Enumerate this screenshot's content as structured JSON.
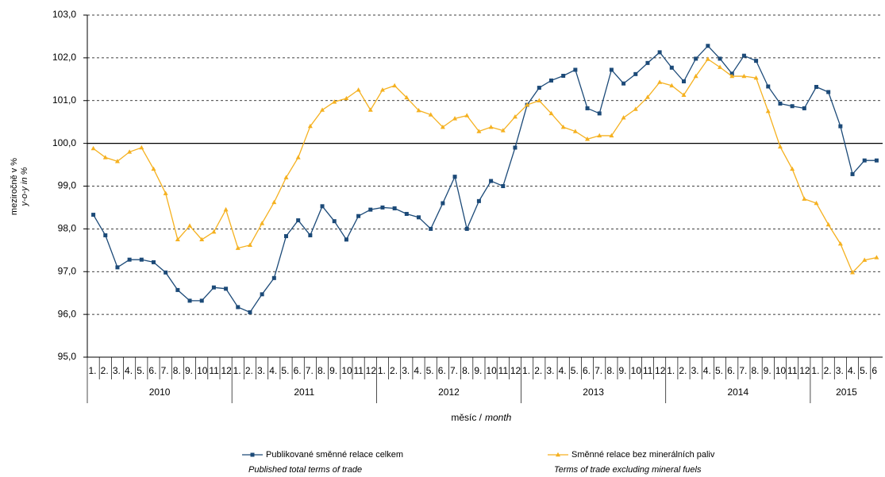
{
  "chart_data": {
    "type": "line",
    "ylabel": "meziročně v %",
    "ylabel_en": "y-o-y in %",
    "xlabel": "měsíc /",
    "xlabel_en": "month",
    "categories": [
      "1.",
      "2.",
      "3.",
      "4.",
      "5.",
      "6.",
      "7.",
      "8.",
      "9.",
      "10",
      "11",
      "12",
      "1.",
      "2.",
      "3.",
      "4.",
      "5.",
      "6.",
      "7.",
      "8.",
      "9.",
      "10",
      "11",
      "12",
      "1.",
      "2.",
      "3.",
      "4.",
      "5.",
      "6.",
      "7.",
      "8.",
      "9.",
      "10",
      "11",
      "12",
      "1.",
      "2.",
      "3.",
      "4.",
      "5.",
      "6.",
      "7.",
      "8.",
      "9.",
      "10",
      "11",
      "12",
      "1.",
      "2.",
      "3.",
      "4.",
      "5.",
      "6.",
      "7.",
      "8.",
      "9.",
      "10",
      "11",
      "12",
      "1.",
      "2.",
      "3.",
      "4.",
      "5.",
      "6"
    ],
    "years": [
      "2010",
      "2011",
      "2012",
      "2013",
      "2014",
      "2015"
    ],
    "ylim": [
      95,
      103
    ],
    "yticks": [
      {
        "value": 95,
        "label": "95,0"
      },
      {
        "value": 96,
        "label": "96,0"
      },
      {
        "value": 97,
        "label": "97,0"
      },
      {
        "value": 98,
        "label": "98,0"
      },
      {
        "value": 99,
        "label": "99,0"
      },
      {
        "value": 100,
        "label": "100,0"
      },
      {
        "value": 101,
        "label": "101,0"
      },
      {
        "value": 102,
        "label": "102,0"
      },
      {
        "value": 103,
        "label": "103,0"
      }
    ],
    "baseline": 100,
    "grid": true,
    "series": [
      {
        "name": "Publikované směnné relace celkem",
        "subtitle": "Published total terms of trade",
        "color": "#1c4a78",
        "marker": "square",
        "values": [
          98.33,
          97.85,
          97.1,
          97.28,
          97.28,
          97.22,
          96.98,
          96.57,
          96.32,
          96.32,
          96.63,
          96.6,
          96.17,
          96.05,
          96.47,
          96.85,
          97.83,
          98.2,
          97.85,
          98.53,
          98.18,
          97.75,
          98.3,
          98.45,
          98.5,
          98.48,
          98.35,
          98.27,
          98.0,
          98.6,
          99.22,
          98.0,
          98.65,
          99.12,
          99.0,
          99.9,
          100.9,
          101.3,
          101.47,
          101.58,
          101.72,
          100.82,
          100.7,
          101.72,
          101.4,
          101.62,
          101.88,
          102.13,
          101.77,
          101.45,
          101.98,
          102.28,
          101.98,
          101.63,
          102.05,
          101.93,
          101.33,
          100.93,
          100.87,
          100.82,
          101.32,
          101.2,
          100.4,
          99.28,
          99.6,
          99.6
        ]
      },
      {
        "name": "Směnné relace bez minerálních paliv",
        "subtitle": "Terms of trade excluding mineral fuels",
        "color": "#f5b120",
        "marker": "triangle",
        "values": [
          99.88,
          99.67,
          99.58,
          99.8,
          99.9,
          99.4,
          98.83,
          97.75,
          98.07,
          97.75,
          97.93,
          98.45,
          97.55,
          97.62,
          98.13,
          98.62,
          99.2,
          99.67,
          100.4,
          100.78,
          100.97,
          101.05,
          101.25,
          100.78,
          101.25,
          101.35,
          101.07,
          100.77,
          100.67,
          100.38,
          100.58,
          100.65,
          100.28,
          100.38,
          100.3,
          100.62,
          100.9,
          101.0,
          100.7,
          100.38,
          100.28,
          100.1,
          100.18,
          100.18,
          100.6,
          100.8,
          101.08,
          101.43,
          101.35,
          101.13,
          101.57,
          101.97,
          101.78,
          101.57,
          101.57,
          101.53,
          100.75,
          99.92,
          99.4,
          98.7,
          98.6,
          98.1,
          97.65,
          96.98,
          97.27,
          97.33
        ]
      }
    ]
  }
}
